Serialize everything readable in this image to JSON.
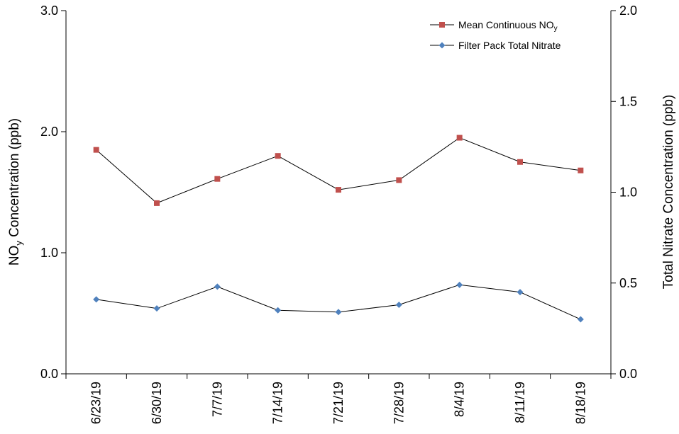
{
  "chart_data": {
    "type": "line",
    "title": "",
    "xlabel": "",
    "ylabel": "NO",
    "ylabel_sub": "y",
    "ylabel_suffix": " Concentration (ppb)",
    "y2label": "Total Nitrate Concentration (ppb)",
    "categories": [
      "6/23/19",
      "6/30/19",
      "7/7/19",
      "7/14/19",
      "7/21/19",
      "7/28/19",
      "8/4/19",
      "8/11/19",
      "8/18/19"
    ],
    "ylim": [
      0,
      3.0
    ],
    "y2lim": [
      0,
      2.0
    ],
    "yticks": [
      "0.0",
      "1.0",
      "2.0",
      "3.0"
    ],
    "y2ticks": [
      "0.0",
      "0.5",
      "1.0",
      "1.5",
      "2.0"
    ],
    "grid": false,
    "legend_position": "top-right",
    "series": [
      {
        "name": "Mean Continuous NO",
        "name_sub": "y",
        "axis": "left",
        "marker": "square",
        "color": "#c0504d",
        "values": [
          1.85,
          1.41,
          1.61,
          1.8,
          1.52,
          1.6,
          1.95,
          1.75,
          1.68
        ]
      },
      {
        "name": "Filter Pack Total Nitrate",
        "axis": "right",
        "marker": "diamond",
        "color": "#4f81bd",
        "values": [
          0.41,
          0.36,
          0.48,
          0.35,
          0.34,
          0.38,
          0.49,
          0.45,
          0.3
        ]
      }
    ]
  }
}
